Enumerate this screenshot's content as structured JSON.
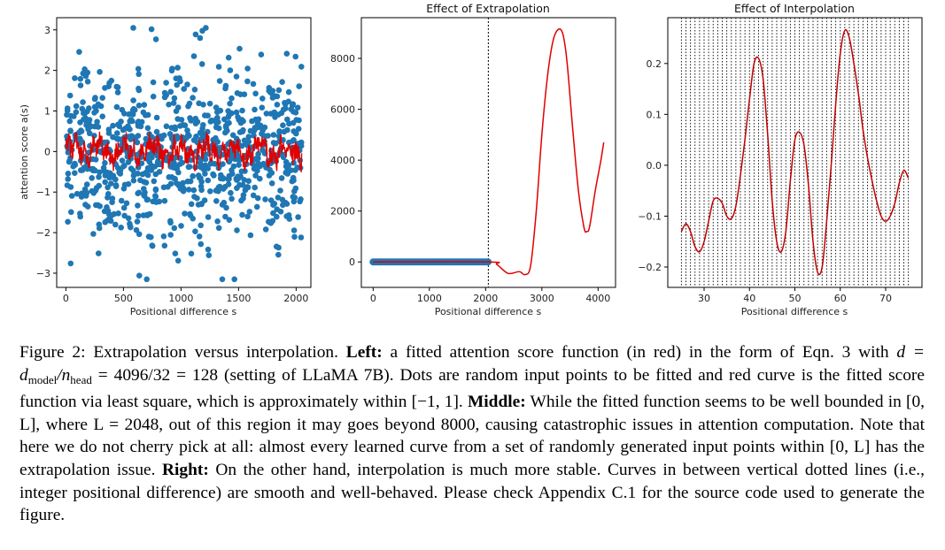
{
  "chart_data": [
    {
      "type": "scatter",
      "name": "left",
      "title": "",
      "xlabel": "Positional difference s",
      "ylabel": "attention score a(s)",
      "xlim": [
        -80,
        2128
      ],
      "ylim": [
        -3.35,
        3.3
      ],
      "xticks": [
        0,
        500,
        1000,
        1500,
        2000
      ],
      "xtick_labels": [
        "0",
        "500",
        "1000",
        "1500",
        "2000"
      ],
      "yticks": [
        -3,
        -2,
        -1,
        0,
        1,
        2,
        3
      ],
      "ytick_labels": [
        "−3",
        "−2",
        "−1",
        "0",
        "1",
        "2",
        "3"
      ],
      "points": {
        "n": 900,
        "x_range": [
          0,
          2048
        ],
        "distribution": "roughly normal, std 1, mostly within [-3, 3]",
        "color": "#1f77b4"
      },
      "fitted_curve": {
        "color": "#e00000",
        "approx_range": [
          -0.5,
          0.5
        ],
        "center": 0
      }
    },
    {
      "type": "line",
      "name": "middle",
      "title": "Effect of Extrapolation",
      "xlabel": "Positional difference s",
      "ylabel": "",
      "xlim": [
        -210,
        4310
      ],
      "ylim": [
        -1000,
        9600
      ],
      "xticks": [
        0,
        1000,
        2000,
        3000,
        4000
      ],
      "xtick_labels": [
        "0",
        "1000",
        "2000",
        "3000",
        "4000"
      ],
      "yticks": [
        0,
        2000,
        4000,
        6000,
        8000
      ],
      "ytick_labels": [
        "0",
        "2000",
        "4000",
        "6000",
        "8000"
      ],
      "boundary_line_x": 2048,
      "x": [
        0,
        2048,
        2200,
        2400,
        2600,
        2700,
        2800,
        2900,
        3000,
        3100,
        3200,
        3300,
        3380,
        3450,
        3550,
        3650,
        3750,
        3800,
        3850,
        3950,
        4050,
        4100
      ],
      "y": [
        0,
        0,
        -100,
        -450,
        -380,
        -500,
        -150,
        2000,
        5000,
        7300,
        8700,
        9150,
        8900,
        7800,
        5200,
        2800,
        1350,
        1200,
        1400,
        2800,
        4000,
        4700
      ],
      "line_color": "#e00000",
      "points_color": "#1f77b4"
    },
    {
      "type": "line",
      "name": "right",
      "title": "Effect of Interpolation",
      "xlabel": "Positional difference s",
      "ylabel": "",
      "xlim": [
        22,
        78
      ],
      "ylim": [
        -0.24,
        0.29
      ],
      "xticks": [
        30,
        40,
        50,
        60,
        70
      ],
      "xtick_labels": [
        "30",
        "40",
        "50",
        "60",
        "70"
      ],
      "yticks": [
        -0.2,
        -0.1,
        0.0,
        0.1,
        0.2
      ],
      "ytick_labels": [
        "−0.2",
        "−0.1",
        "0.0",
        "0.1",
        "0.2"
      ],
      "vertical_lines": {
        "from": 25,
        "to": 75,
        "step": 1
      },
      "x": [
        25,
        26,
        27,
        28,
        29,
        30,
        31,
        32,
        33,
        34,
        35,
        36,
        37,
        38,
        39,
        40,
        41,
        42,
        43,
        44,
        45,
        46,
        47,
        48,
        49,
        50,
        51,
        52,
        53,
        54,
        55,
        56,
        57,
        58,
        59,
        60,
        61,
        62,
        63,
        64,
        65,
        66,
        67,
        68,
        69,
        70,
        71,
        72,
        73,
        74,
        75
      ],
      "y": [
        -0.13,
        -0.115,
        -0.13,
        -0.16,
        -0.17,
        -0.15,
        -0.11,
        -0.07,
        -0.065,
        -0.075,
        -0.1,
        -0.105,
        -0.08,
        -0.02,
        0.05,
        0.13,
        0.2,
        0.21,
        0.17,
        0.06,
        -0.07,
        -0.15,
        -0.17,
        -0.13,
        -0.03,
        0.05,
        0.065,
        0.04,
        -0.04,
        -0.15,
        -0.21,
        -0.2,
        -0.11,
        0.0,
        0.12,
        0.22,
        0.265,
        0.25,
        0.2,
        0.14,
        0.07,
        0.015,
        -0.03,
        -0.07,
        -0.1,
        -0.11,
        -0.1,
        -0.075,
        -0.035,
        -0.01,
        -0.025
      ],
      "line_color": "#c00000"
    }
  ],
  "caption": {
    "figure_label": "Figure 2:",
    "intro": " Extrapolation versus interpolation. ",
    "left_label": "Left:",
    "left_text_1": " a fitted attention score function (in red) in the form of Eqn. 3 with ",
    "eq_d": "d = d",
    "eq_model": "model",
    "eq_slash": "/n",
    "eq_head": "head",
    "eq_rest": " = 4096/32 = 128",
    "left_text_2": " (setting of LLaMA 7B). Dots are random input points to be fitted and red curve is the fitted score function via least square, which is approximately within [−1, 1]. ",
    "middle_label": "Middle:",
    "middle_text": " While the fitted function seems to be well bounded in [0, L], where L = 2048, out of this region it may goes beyond 8000, causing catastrophic issues in attention computation. Note that here we do not cherry pick at all: almost every learned curve from a set of randomly generated input points within [0, L] has the extrapolation issue. ",
    "right_label": "Right:",
    "right_text": " On the other hand, interpolation is much more stable. Curves in between vertical dotted lines (i.e., integer positional difference) are smooth and well-behaved. Please check Appendix C.1 for the source code used to generate the figure."
  }
}
